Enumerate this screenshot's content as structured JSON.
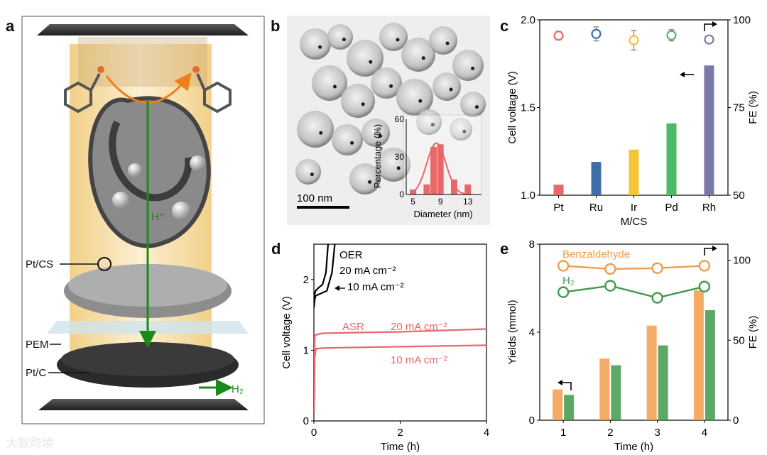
{
  "panels": {
    "a": "a",
    "b": "b",
    "c": "c",
    "d": "d",
    "e": "e"
  },
  "panel_a": {
    "labels": {
      "hplus": "H⁺",
      "pt_cs": "Pt/CS",
      "pem": "PEM",
      "pt_c": "Pt/C",
      "h2": "H₂"
    },
    "colors": {
      "arrow_green": "#1a8a1a",
      "arrow_orange": "#f07d1a",
      "frame_fill": "#f5dfa8"
    }
  },
  "panel_b": {
    "scale_bar": "100 nm",
    "inset": {
      "ylabel": "Percentage (%)",
      "xlabel": "Diameter (nm)",
      "yticks": [
        "0",
        "30",
        "60"
      ],
      "xticks": [
        "5",
        "9",
        "13"
      ],
      "bins": [
        5,
        7,
        8,
        9,
        11,
        13
      ],
      "values": [
        4,
        8,
        38,
        40,
        12,
        8
      ],
      "color": "#e8686a"
    }
  },
  "chart_data": [
    {
      "type": "bar",
      "panel": "c",
      "categories": [
        "Pt",
        "Ru",
        "Ir",
        "Pd",
        "Rh"
      ],
      "xlabel": "M/CS",
      "ylabel": "Cell voltage (V)",
      "y2label": "FE (%)",
      "ylim": [
        1.0,
        2.0
      ],
      "y2lim": [
        50,
        100
      ],
      "yticks": [
        "1.0",
        "1.5",
        "2.0"
      ],
      "y2ticks": [
        "50",
        "75",
        "100"
      ],
      "series": [
        {
          "values": [
            1.06,
            1.19,
            1.26,
            1.41,
            1.74
          ],
          "colors": [
            "#e8686a",
            "#3e6ea8",
            "#f4c43a",
            "#4cba6a",
            "#7a7aa6"
          ]
        },
        {
          "values": [
            95.5,
            96.0,
            94.2,
            95.6,
            94.4
          ],
          "errors": [
            1.2,
            2.0,
            2.8,
            1.6,
            0.8
          ]
        }
      ]
    },
    {
      "type": "line",
      "panel": "d",
      "xlabel": "Time (h)",
      "ylabel": "Cell voltage (V)",
      "xlim": [
        0,
        4
      ],
      "ylim": [
        0,
        2.5
      ],
      "xticks": [
        "0",
        "2",
        "4"
      ],
      "yticks": [
        "0",
        "1",
        "2"
      ],
      "annotations": [
        "OER",
        "20 mA cm⁻²",
        "10 mA cm⁻²",
        "ASR",
        "20 mA cm⁻²",
        "10 mA cm⁻²"
      ],
      "series": [
        {
          "x": [
            0,
            0.02,
            0.04,
            0.1,
            0.2,
            0.28,
            0.34
          ],
          "y": [
            1.72,
            1.8,
            1.84,
            1.88,
            1.93,
            2.1,
            2.6
          ],
          "color": "#000000"
        },
        {
          "x": [
            0,
            0.02,
            0.04,
            0.15,
            0.3,
            0.42,
            0.5
          ],
          "y": [
            1.6,
            1.72,
            1.77,
            1.8,
            1.84,
            2.1,
            2.6
          ],
          "color": "#000000"
        },
        {
          "x": [
            0,
            0.02,
            0.05,
            0.2,
            1,
            2,
            3,
            4
          ],
          "y": [
            0.55,
            1.2,
            1.22,
            1.24,
            1.25,
            1.26,
            1.28,
            1.3
          ],
          "color": "#e8686a"
        },
        {
          "x": [
            0,
            0.01,
            0.02,
            0.05,
            0.2,
            1,
            2,
            3,
            4
          ],
          "y": [
            0.12,
            0.4,
            0.9,
            1.02,
            1.03,
            1.04,
            1.05,
            1.06,
            1.07
          ],
          "color": "#e8686a"
        }
      ]
    },
    {
      "type": "bar",
      "panel": "e",
      "categories": [
        "1",
        "2",
        "3",
        "4"
      ],
      "xlabel": "Time (h)",
      "ylabel": "Yields (mmol)",
      "y2label": "FE (%)",
      "ylim": [
        0,
        8
      ],
      "y2lim": [
        0,
        110
      ],
      "yticks": [
        "0",
        "4",
        "8"
      ],
      "y2ticks": [
        "0",
        "50",
        "100"
      ],
      "series": [
        {
          "name": "Benzaldehyde",
          "values": [
            1.4,
            2.8,
            4.3,
            5.9
          ],
          "fe": [
            96.5,
            94.5,
            95.0,
            96.5
          ],
          "color": "#f39c4a"
        },
        {
          "name": "H₂",
          "values": [
            1.15,
            2.5,
            3.4,
            5.0
          ],
          "fe": [
            80.0,
            84.0,
            76.5,
            83.5
          ],
          "color": "#3f9a4a"
        }
      ]
    }
  ],
  "watermark": "大数跨境"
}
